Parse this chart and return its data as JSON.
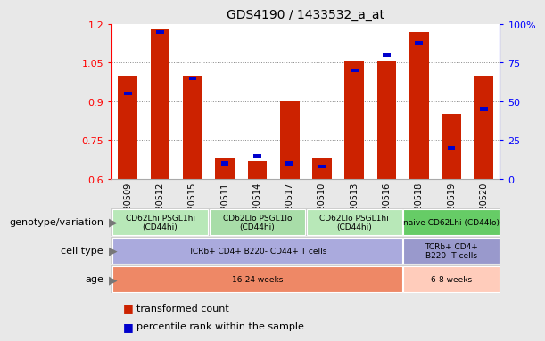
{
  "title": "GDS4190 / 1433532_a_at",
  "samples": [
    "GSM520509",
    "GSM520512",
    "GSM520515",
    "GSM520511",
    "GSM520514",
    "GSM520517",
    "GSM520510",
    "GSM520513",
    "GSM520516",
    "GSM520518",
    "GSM520519",
    "GSM520520"
  ],
  "transformed_count": [
    1.0,
    1.18,
    1.0,
    0.68,
    0.67,
    0.9,
    0.68,
    1.06,
    1.06,
    1.17,
    0.85,
    1.0
  ],
  "percentile_rank": [
    55,
    95,
    65,
    10,
    15,
    10,
    8,
    70,
    80,
    88,
    20,
    45
  ],
  "ylim_left": [
    0.6,
    1.2
  ],
  "ylim_right": [
    0,
    100
  ],
  "left_ticks": [
    0.6,
    0.75,
    0.9,
    1.05,
    1.2
  ],
  "right_ticks": [
    0,
    25,
    50,
    75,
    100
  ],
  "bar_color_red": "#cc2200",
  "bar_color_blue": "#0000cc",
  "grid_color": "#888888",
  "bg_color": "#e8e8e8",
  "plot_bg": "#ffffff",
  "genotype_groups": [
    {
      "label": "CD62Lhi PSGL1hi\n(CD44hi)",
      "start": 0,
      "end": 3,
      "color": "#b8e8b8"
    },
    {
      "label": "CD62Llo PSGL1lo\n(CD44hi)",
      "start": 3,
      "end": 6,
      "color": "#a8dda8"
    },
    {
      "label": "CD62Llo PSGL1hi\n(CD44hi)",
      "start": 6,
      "end": 9,
      "color": "#b8e8b8"
    },
    {
      "label": "naive CD62Lhi (CD44lo)",
      "start": 9,
      "end": 12,
      "color": "#66cc66"
    }
  ],
  "cell_type_groups": [
    {
      "label": "TCRb+ CD4+ B220- CD44+ T cells",
      "start": 0,
      "end": 9,
      "color": "#aaaadd"
    },
    {
      "label": "TCRb+ CD4+\nB220- T cells",
      "start": 9,
      "end": 12,
      "color": "#9999cc"
    }
  ],
  "age_groups": [
    {
      "label": "16-24 weeks",
      "start": 0,
      "end": 9,
      "color": "#ee8866"
    },
    {
      "label": "6-8 weeks",
      "start": 9,
      "end": 12,
      "color": "#ffccbb"
    }
  ],
  "legend_items": [
    {
      "color": "#cc2200",
      "label": "transformed count"
    },
    {
      "color": "#0000cc",
      "label": "percentile rank within the sample"
    }
  ],
  "row_labels": [
    "genotype/variation",
    "cell type",
    "age"
  ],
  "arrow_color": "#777777"
}
